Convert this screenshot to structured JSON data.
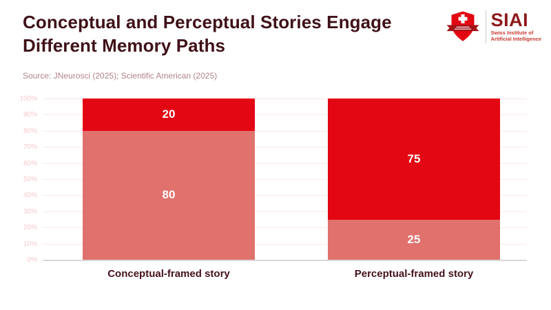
{
  "header": {
    "title": "Conceptual and Perceptual Stories Engage Different Memory Paths",
    "source": "Source: JNeurosci (2025); Scientific American (2025)"
  },
  "logo": {
    "acronym": "SIAI",
    "subtitle_line1": "Swiss Institute of",
    "subtitle_line2": "Artificial Intelligence",
    "shield_icon": "swiss-shield-icon"
  },
  "colors": {
    "bar_top_red": "#E30613",
    "bar_bottom_salmon": "#E0716C",
    "title_maroon": "#3F1118",
    "category_label": "#45121C",
    "source_text": "#B0838A",
    "y_tick_text": "#F6C9CD",
    "gridline": "#FBE7E8",
    "zero_axis_line": "#D8D8D8",
    "logo_acronym": "#8E1A1C",
    "logo_subtitle": "#C8372D",
    "value_label": "#FFFFFF"
  },
  "chart_data": {
    "type": "bar",
    "stacked": true,
    "title": "Conceptual and Perceptual Stories Engage Different Memory Paths",
    "categories": [
      "Conceptual-framed story",
      "Perceptual-framed story"
    ],
    "series": [
      {
        "name": "bottom-segment",
        "color": "#E0716C",
        "values": [
          80,
          25
        ]
      },
      {
        "name": "top-segment",
        "color": "#E30613",
        "values": [
          20,
          75
        ]
      }
    ],
    "value_labels": [
      [
        "80",
        "20"
      ],
      [
        "25",
        "75"
      ]
    ],
    "xlabel": "",
    "ylabel": "",
    "y_axis": {
      "min": 0,
      "max": 100,
      "ticks": [
        "0%",
        "10%",
        "20%",
        "30%",
        "40%",
        "50%",
        "60%",
        "70%",
        "80%",
        "90%",
        "100%"
      ]
    },
    "grid": true,
    "legend": false
  }
}
